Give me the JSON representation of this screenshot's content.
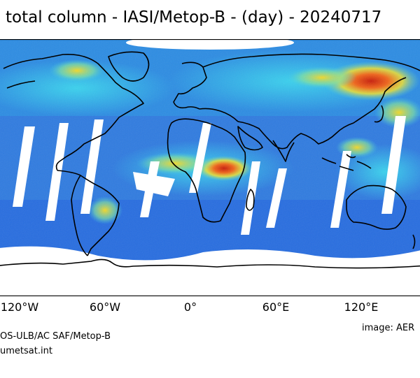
{
  "title": "total column - IASI/Metop-B - (day) - 20240717",
  "axis": {
    "ticks": [
      {
        "label": "120°W",
        "lon": -120
      },
      {
        "label": "60°W",
        "lon": -60
      },
      {
        "label": "0°",
        "lon": 0
      },
      {
        "label": "60°E",
        "lon": 60
      },
      {
        "label": "120°E",
        "lon": 120
      }
    ]
  },
  "credits": {
    "source_line1": "OS-ULB/AC SAF/Metop-B",
    "source_line2": "umetsat.int",
    "image_credit": "image: AER"
  },
  "colors": {
    "background_blue": "#2f7be0",
    "low": "#1e4fd6",
    "mid": "#27c0e8",
    "high": "#f2e021",
    "hot": "#e63c12",
    "coast": "#000000"
  }
}
